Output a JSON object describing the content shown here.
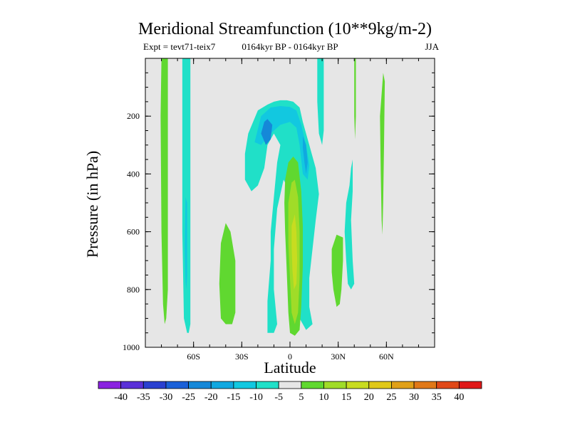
{
  "chart_data": {
    "type": "contour",
    "title": "Meridional Streamfunction (10**9kg/m-2)",
    "subtitle_left": "Expt = tevt71-teix7",
    "subtitle_center": "0164kyr BP - 0164kyr BP",
    "subtitle_right": "JJA",
    "xlabel": "Latitude",
    "ylabel": "Pressure (in hPa)",
    "xlim": [
      -90,
      90
    ],
    "ylim": [
      1000,
      0
    ],
    "x_ticks": [
      {
        "value": -60,
        "label": "60S"
      },
      {
        "value": -30,
        "label": "30S"
      },
      {
        "value": 0,
        "label": "0"
      },
      {
        "value": 30,
        "label": "30N"
      },
      {
        "value": 60,
        "label": "60N"
      }
    ],
    "y_ticks": [
      {
        "value": 200,
        "label": "200"
      },
      {
        "value": 400,
        "label": "400"
      },
      {
        "value": 600,
        "label": "600"
      },
      {
        "value": 800,
        "label": "800"
      },
      {
        "value": 1000,
        "label": "1000"
      }
    ],
    "background_color": "#e6e6e6",
    "colorbar": {
      "levels": [
        "-40",
        "-35",
        "-30",
        "-25",
        "-20",
        "-15",
        "-10",
        "-5",
        "5",
        "10",
        "15",
        "20",
        "25",
        "30",
        "35",
        "40"
      ],
      "colors": [
        "#8a22e0",
        "#5a30d8",
        "#2a40d0",
        "#1a60d8",
        "#1588d8",
        "#10a8e0",
        "#12c8e0",
        "#20e0c8",
        "#e6e6e6",
        "#60d830",
        "#a0dc28",
        "#c8dc20",
        "#e0c818",
        "#e0a018",
        "#e07818",
        "#e04818",
        "#e01818"
      ]
    },
    "contours": [
      {
        "level": 5,
        "color": "#60d830",
        "points": [
          [
            -80,
            0
          ],
          [
            -76,
            0
          ],
          [
            -76,
            350
          ],
          [
            -76,
            800
          ],
          [
            -77,
            900
          ],
          [
            -78,
            920
          ],
          [
            -79,
            850
          ],
          [
            -80,
            600
          ],
          [
            -80.5,
            200
          ]
        ]
      },
      {
        "level": -5,
        "color": "#20e0c8",
        "points": [
          [
            -67,
            0
          ],
          [
            -62,
            0
          ],
          [
            -62,
            400
          ],
          [
            -62,
            920
          ],
          [
            -63,
            950
          ],
          [
            -64,
            950
          ],
          [
            -66,
            900
          ],
          [
            -67,
            600
          ],
          [
            -67,
            200
          ]
        ]
      },
      {
        "level": -10,
        "color": "#12c8e0",
        "points": [
          [
            -65,
            480
          ],
          [
            -64,
            500
          ],
          [
            -64,
            750
          ],
          [
            -64.5,
            800
          ],
          [
            -65,
            770
          ],
          [
            -65.5,
            650
          ]
        ]
      },
      {
        "level": 5,
        "color": "#60d830",
        "points": [
          [
            -40,
            570
          ],
          [
            -37,
            600
          ],
          [
            -34,
            700
          ],
          [
            -34,
            880
          ],
          [
            -36,
            920
          ],
          [
            -40,
            920
          ],
          [
            -43,
            900
          ],
          [
            -44,
            780
          ],
          [
            -43,
            640
          ]
        ]
      },
      {
        "level": -5,
        "color": "#20e0c8",
        "points": [
          [
            -28,
            330
          ],
          [
            -26,
            260
          ],
          [
            -20,
            180
          ],
          [
            -14,
            160
          ],
          [
            -10,
            150
          ],
          [
            -6,
            145
          ],
          [
            -2,
            145
          ],
          [
            2,
            150
          ],
          [
            6,
            170
          ],
          [
            8,
            220
          ],
          [
            12,
            300
          ],
          [
            16,
            380
          ],
          [
            18,
            470
          ],
          [
            16,
            560
          ],
          [
            14,
            660
          ],
          [
            12,
            760
          ],
          [
            12,
            860
          ],
          [
            14,
            920
          ],
          [
            10,
            940
          ],
          [
            6,
            900
          ],
          [
            4,
            800
          ],
          [
            3,
            700
          ],
          [
            2,
            560
          ],
          [
            0,
            460
          ],
          [
            -4,
            420
          ],
          [
            -8,
            520
          ],
          [
            -10,
            660
          ],
          [
            -10,
            800
          ],
          [
            -8,
            920
          ],
          [
            -10,
            950
          ],
          [
            -14,
            950
          ],
          [
            -14,
            840
          ],
          [
            -12,
            700
          ],
          [
            -12,
            600
          ],
          [
            -10,
            480
          ],
          [
            -8,
            360
          ],
          [
            -6,
            300
          ],
          [
            -10,
            260
          ],
          [
            -14,
            300
          ],
          [
            -16,
            380
          ],
          [
            -20,
            440
          ],
          [
            -24,
            460
          ],
          [
            -28,
            420
          ]
        ]
      },
      {
        "level": -10,
        "color": "#12c8e0",
        "points": [
          [
            -22,
            290
          ],
          [
            -18,
            200
          ],
          [
            -12,
            170
          ],
          [
            -6,
            165
          ],
          [
            0,
            168
          ],
          [
            4,
            180
          ],
          [
            7,
            230
          ],
          [
            10,
            300
          ],
          [
            12,
            370
          ],
          [
            11,
            420
          ],
          [
            8,
            400
          ],
          [
            6,
            300
          ],
          [
            4,
            240
          ],
          [
            0,
            220
          ],
          [
            -6,
            230
          ],
          [
            -12,
            260
          ],
          [
            -18,
            300
          ]
        ]
      },
      {
        "level": -20,
        "color": "#1588d8",
        "points": [
          [
            -18,
            260
          ],
          [
            -16,
            220
          ],
          [
            -14,
            210
          ],
          [
            -11,
            230
          ],
          [
            -12,
            280
          ],
          [
            -15,
            300
          ]
        ]
      },
      {
        "level": -15,
        "color": "#10a8e0",
        "points": [
          [
            8,
            270
          ],
          [
            10,
            300
          ],
          [
            11,
            360
          ],
          [
            10,
            400
          ],
          [
            9,
            360
          ],
          [
            8,
            310
          ]
        ]
      },
      {
        "level": 5,
        "color": "#60d830",
        "points": [
          [
            -3,
            420
          ],
          [
            -1,
            360
          ],
          [
            2,
            340
          ],
          [
            5,
            360
          ],
          [
            7,
            460
          ],
          [
            8,
            580
          ],
          [
            8,
            720
          ],
          [
            7,
            860
          ],
          [
            6,
            940
          ],
          [
            3,
            960
          ],
          [
            0,
            950
          ],
          [
            -1,
            880
          ],
          [
            -2,
            740
          ],
          [
            -3,
            600
          ],
          [
            -3.5,
            500
          ]
        ]
      },
      {
        "level": 10,
        "color": "#a0dc28",
        "points": [
          [
            -1,
            500
          ],
          [
            1,
            430
          ],
          [
            3,
            420
          ],
          [
            5,
            480
          ],
          [
            6,
            600
          ],
          [
            6,
            760
          ],
          [
            5,
            880
          ],
          [
            3,
            920
          ],
          [
            1,
            880
          ],
          [
            0,
            760
          ],
          [
            -1,
            640
          ]
        ]
      },
      {
        "level": 15,
        "color": "#c8dc20",
        "points": [
          [
            1,
            580
          ],
          [
            3,
            540
          ],
          [
            4,
            600
          ],
          [
            4.5,
            700
          ],
          [
            4,
            780
          ],
          [
            2.5,
            800
          ],
          [
            1.5,
            730
          ],
          [
            1,
            650
          ]
        ]
      },
      {
        "level": -5,
        "color": "#20e0c8",
        "points": [
          [
            17,
            0
          ],
          [
            21,
            0
          ],
          [
            21,
            250
          ],
          [
            20,
            300
          ],
          [
            18,
            260
          ],
          [
            17,
            150
          ]
        ]
      },
      {
        "level": 5,
        "color": "#60d830",
        "points": [
          [
            40,
            0
          ],
          [
            41,
            0
          ],
          [
            41,
            200
          ],
          [
            40.5,
            280
          ],
          [
            40,
            200
          ]
        ]
      },
      {
        "level": -5,
        "color": "#20e0c8",
        "points": [
          [
            34,
            600
          ],
          [
            35,
            500
          ],
          [
            37,
            440
          ],
          [
            38,
            380
          ],
          [
            39,
            350
          ],
          [
            39,
            460
          ],
          [
            38,
            560
          ],
          [
            39,
            700
          ],
          [
            40,
            780
          ],
          [
            38,
            800
          ],
          [
            36,
            780
          ],
          [
            35,
            700
          ]
        ]
      },
      {
        "level": 5,
        "color": "#60d830",
        "points": [
          [
            26,
            660
          ],
          [
            29,
            610
          ],
          [
            33,
            620
          ],
          [
            33,
            700
          ],
          [
            32,
            800
          ],
          [
            31,
            850
          ],
          [
            29,
            860
          ],
          [
            27,
            800
          ],
          [
            26,
            740
          ]
        ]
      },
      {
        "level": 5,
        "color": "#60d830",
        "points": [
          [
            56,
            200
          ],
          [
            58,
            50
          ],
          [
            59,
            80
          ],
          [
            58.5,
            300
          ],
          [
            58,
            500
          ],
          [
            57.5,
            610
          ],
          [
            57,
            560
          ],
          [
            56.5,
            400
          ]
        ]
      }
    ]
  }
}
